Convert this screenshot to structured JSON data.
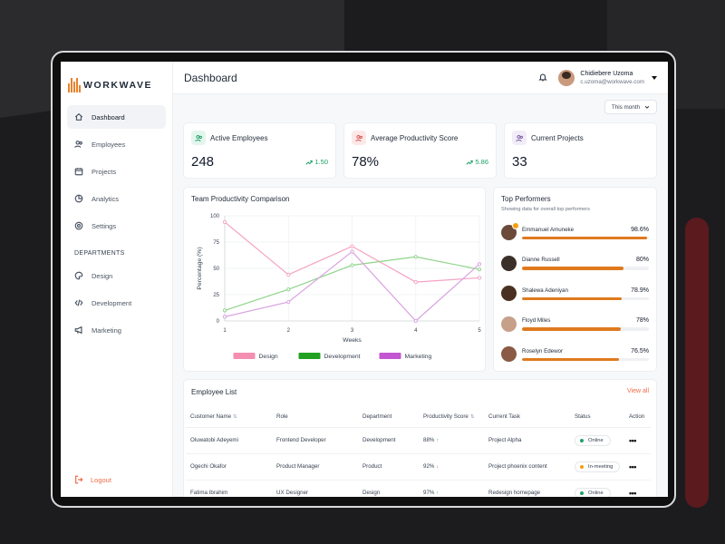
{
  "app": {
    "logo_text": "WORKWAVE",
    "colors": {
      "accent": "#df7a1e",
      "danger": "#ef6b47",
      "success": "#22a06b",
      "sidebar_bg": "#ffffff",
      "page_bg": "#f7f8fa"
    }
  },
  "sidebar": {
    "items": [
      {
        "label": "Dashboard",
        "icon": "home-icon",
        "active": true
      },
      {
        "label": "Employees",
        "icon": "users-icon"
      },
      {
        "label": "Projects",
        "icon": "calendar-icon"
      },
      {
        "label": "Analytics",
        "icon": "pie-chart-icon"
      },
      {
        "label": "Settings",
        "icon": "gear-icon"
      }
    ],
    "departments_heading": "DEPARTMENTS",
    "departments": [
      {
        "label": "Design",
        "icon": "palette-icon"
      },
      {
        "label": "Development",
        "icon": "code-icon"
      },
      {
        "label": "Marketing",
        "icon": "megaphone-icon"
      }
    ],
    "logout_label": "Logout"
  },
  "header": {
    "title": "Dashboard",
    "user_name": "Chidiebere Uzoma",
    "user_email": "c.uzoma@workwave.com",
    "filter_label": "This month"
  },
  "stats": [
    {
      "label": "Active Employees",
      "value": "248",
      "change": "1.50",
      "icon": "users-icon",
      "tint": "#e3f6ee",
      "stroke": "#22a06b"
    },
    {
      "label": "Average Productivity Score",
      "value": "78%",
      "change": "5.86",
      "icon": "users-icon",
      "tint": "#fde8e8",
      "stroke": "#d9534f"
    },
    {
      "label": "Current Projects",
      "value": "33",
      "change": "",
      "icon": "users-icon",
      "tint": "#f1ecf7",
      "stroke": "#7c5ca8"
    }
  ],
  "chart_data": {
    "type": "line",
    "title": "Team Productivity Comparison",
    "xlabel": "Weeks",
    "ylabel": "Percentage (%)",
    "x": [
      1,
      2,
      3,
      4,
      5
    ],
    "ylim": [
      0,
      100
    ],
    "yticks": [
      0,
      25,
      50,
      75,
      100
    ],
    "grid": true,
    "legend_position": "bottom",
    "series": [
      {
        "name": "Design",
        "values": [
          94,
          44,
          71,
          37,
          41
        ],
        "color": "#f4a3c4",
        "legend_color": "#f48fb1"
      },
      {
        "name": "Development",
        "values": [
          10,
          30,
          53,
          61,
          49
        ],
        "color": "#8fd48a",
        "legend_color": "#22a022"
      },
      {
        "name": "Marketing",
        "values": [
          4,
          18,
          66,
          0,
          54
        ],
        "color": "#d9a2e0",
        "legend_color": "#c356d1"
      }
    ]
  },
  "performers": {
    "title": "Top Performers",
    "subtitle": "Showing data for overall top performers",
    "items": [
      {
        "name": "Emmanuel Amuneke",
        "score": "98.6%",
        "pct": 98.6,
        "avatar": "#6b4a3a",
        "badge": true
      },
      {
        "name": "Dianne Russell",
        "score": "80%",
        "pct": 80,
        "avatar": "#3b2f2a",
        "badge": false
      },
      {
        "name": "Shalewa Adeniyan",
        "score": "78.9%",
        "pct": 78.9,
        "avatar": "#4a3020",
        "badge": false
      },
      {
        "name": "Floyd Miles",
        "score": "78%",
        "pct": 78,
        "avatar": "#c7a08a",
        "badge": false
      },
      {
        "name": "Roselyn Edewor",
        "score": "76.5%",
        "pct": 76.5,
        "avatar": "#8a5a44",
        "badge": false
      }
    ]
  },
  "employees": {
    "title": "Employee List",
    "view_all": "View all",
    "columns": [
      "Customer Name",
      "Role",
      "Department",
      "Productivity Score",
      "Current Task",
      "Status",
      "Action"
    ],
    "rows": [
      {
        "name": "Oluwatobi Adeyemi",
        "role": "Frontend Developer",
        "department": "Development",
        "score": "88%",
        "trend": "up",
        "task": "Project Alpha",
        "status": "Online",
        "status_color": "#22a06b"
      },
      {
        "name": "Ogechi Okafor",
        "role": "Product Manager",
        "department": "Product",
        "score": "92%",
        "trend": "down",
        "task": "Project phoenix content",
        "status": "In-meeting",
        "status_color": "#f59e0b"
      },
      {
        "name": "Fatima Ibrahim",
        "role": "UX Designer",
        "department": "Design",
        "score": "97%",
        "trend": "up",
        "task": "Redesign homepage",
        "status": "Online",
        "status_color": "#22a06b"
      }
    ]
  }
}
